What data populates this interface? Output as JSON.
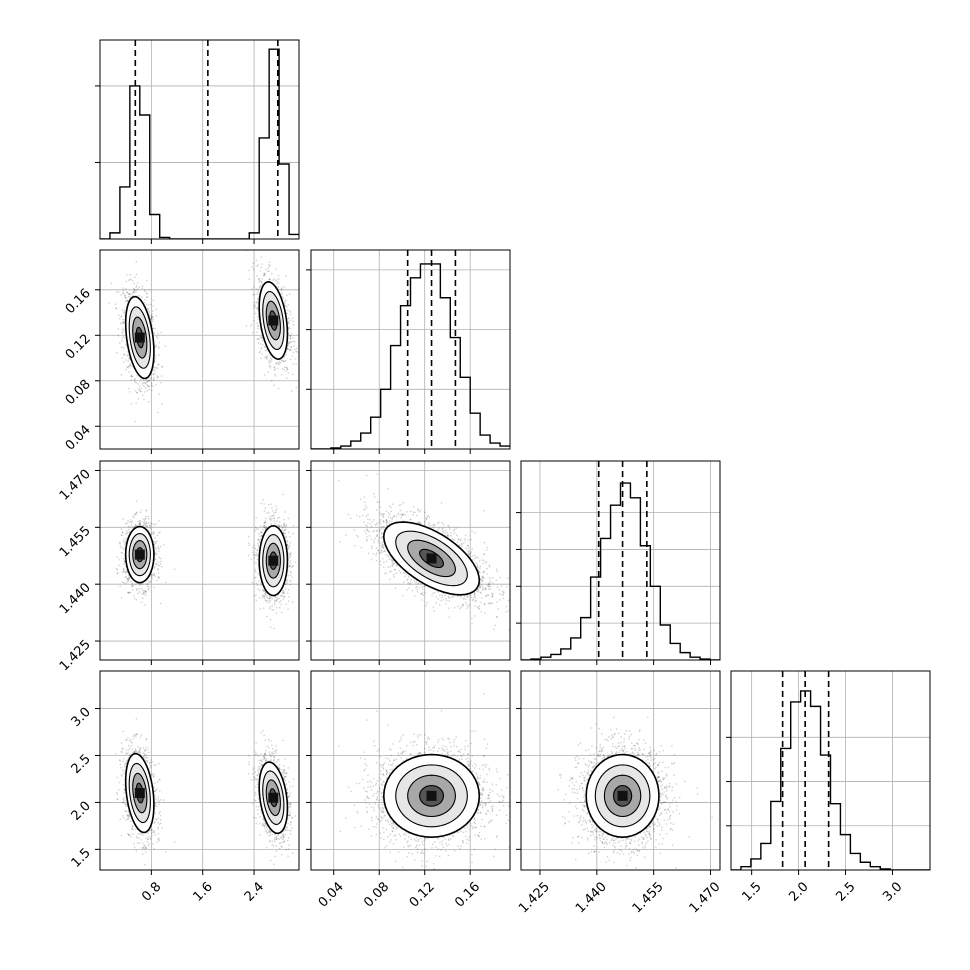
{
  "chart_data": {
    "type": "corner",
    "parameters": [
      {
        "range": [
          0.0,
          3.1
        ],
        "ticks": [
          0.8,
          1.6,
          2.4
        ],
        "tick_labels": [
          "0.8",
          "1.6",
          "2.4"
        ],
        "quantiles": [
          0.55,
          1.68,
          2.77
        ],
        "hist": {
          "edges": [
            0.0,
            0.155,
            0.31,
            0.465,
            0.62,
            0.775,
            0.93,
            1.085,
            1.24,
            1.395,
            1.55,
            1.705,
            1.86,
            2.015,
            2.17,
            2.325,
            2.48,
            2.635,
            2.79,
            2.945,
            3.1
          ],
          "counts": [
            0.0,
            0.04,
            0.34,
            1.0,
            0.81,
            0.16,
            0.01,
            0.0,
            0.0,
            0.0,
            0.0,
            0.0,
            0.0,
            0.0,
            0.0,
            0.04,
            0.66,
            1.24,
            0.49,
            0.03
          ],
          "ymax": 1.3,
          "yticks": [
            0.5,
            1.0
          ]
        }
      },
      {
        "range": [
          0.02,
          0.195
        ],
        "ticks": [
          0.04,
          0.08,
          0.12,
          0.16
        ],
        "tick_labels": [
          "0.04",
          "0.08",
          "0.12",
          "0.16"
        ],
        "quantiles": [
          0.105,
          0.126,
          0.147
        ],
        "hist": {
          "edges": [
            0.02,
            0.02875,
            0.0375,
            0.04625,
            0.055,
            0.06375,
            0.0725,
            0.08125,
            0.09,
            0.09875,
            0.1075,
            0.11625,
            0.125,
            0.13375,
            0.1425,
            0.15125,
            0.16,
            0.16875,
            0.1775,
            0.18625,
            0.195
          ],
          "counts": [
            0.0,
            0.0,
            0.005,
            0.015,
            0.04,
            0.08,
            0.16,
            0.3,
            0.52,
            0.72,
            0.86,
            0.93,
            0.93,
            0.76,
            0.56,
            0.36,
            0.18,
            0.07,
            0.03,
            0.015
          ],
          "ymax": 1.0,
          "yticks": [
            0.3,
            0.6,
            0.9
          ]
        }
      },
      {
        "range": [
          1.42,
          1.4725
        ],
        "ticks": [
          1.425,
          1.44,
          1.455,
          1.47
        ],
        "tick_labels": [
          "1.425",
          "1.440",
          "1.455",
          "1.470"
        ],
        "quantiles": [
          1.4405,
          1.4468,
          1.4532
        ],
        "hist": {
          "edges": [
            1.42,
            1.422625,
            1.42525,
            1.427875,
            1.4305,
            1.433125,
            1.43575,
            1.438375,
            1.441,
            1.443625,
            1.44625,
            1.448875,
            1.4515,
            1.454125,
            1.45675,
            1.459375,
            1.462,
            1.464625,
            1.46725,
            1.469875,
            1.4725
          ],
          "counts": [
            0.0,
            0.005,
            0.015,
            0.03,
            0.06,
            0.12,
            0.23,
            0.45,
            0.66,
            0.84,
            0.96,
            0.88,
            0.62,
            0.4,
            0.19,
            0.09,
            0.04,
            0.015,
            0.005,
            0.0
          ],
          "ymax": 1.08,
          "yticks": [
            0.2,
            0.4,
            0.6,
            0.8
          ]
        }
      },
      {
        "range": [
          1.28,
          3.4
        ],
        "ticks": [
          1.5,
          2.0,
          2.5,
          3.0
        ],
        "tick_labels": [
          "1.5",
          "2.0",
          "2.5",
          "3.0"
        ],
        "quantiles": [
          1.83,
          2.07,
          2.32
        ],
        "hist": {
          "edges": [
            1.28,
            1.386,
            1.492,
            1.598,
            1.704,
            1.81,
            1.916,
            2.022,
            2.128,
            2.234,
            2.34,
            2.446,
            2.552,
            2.658,
            2.764,
            2.87,
            2.976,
            3.082,
            3.188,
            3.294,
            3.4
          ],
          "counts": [
            0.0,
            0.015,
            0.05,
            0.12,
            0.31,
            0.55,
            0.76,
            0.81,
            0.74,
            0.52,
            0.3,
            0.16,
            0.075,
            0.035,
            0.015,
            0.005,
            0.0,
            0.0,
            0.0,
            0.0
          ],
          "ymax": 0.9,
          "yticks": [
            0.2,
            0.4,
            0.6
          ]
        }
      }
    ],
    "pair_modes": {
      "1_0": [
        {
          "mx": 0.62,
          "sx": 0.11,
          "my": 0.118,
          "sy": 0.018,
          "r": -0.35
        },
        {
          "mx": 2.7,
          "sx": 0.11,
          "my": 0.133,
          "sy": 0.017,
          "r": -0.35
        }
      ],
      "2_0": [
        {
          "mx": 0.62,
          "sx": 0.11,
          "my": 1.4478,
          "sy": 0.0037,
          "r": 0.0
        },
        {
          "mx": 2.7,
          "sx": 0.11,
          "my": 1.4462,
          "sy": 0.0046,
          "r": 0.0
        }
      ],
      "3_0": [
        {
          "mx": 0.62,
          "sx": 0.11,
          "my": 2.1,
          "sy": 0.21,
          "r": -0.3
        },
        {
          "mx": 2.7,
          "sx": 0.11,
          "my": 2.05,
          "sy": 0.19,
          "r": -0.3
        }
      ],
      "2_1": [
        {
          "mx": 0.126,
          "sx": 0.021,
          "my": 1.4468,
          "sy": 0.0048,
          "r": -0.6
        }
      ],
      "3_1": [
        {
          "mx": 0.126,
          "sx": 0.021,
          "my": 2.07,
          "sy": 0.22,
          "r": 0.0
        }
      ],
      "3_2": [
        {
          "mx": 1.4468,
          "sx": 0.0048,
          "my": 2.07,
          "sy": 0.22,
          "r": 0.0
        }
      ]
    }
  }
}
